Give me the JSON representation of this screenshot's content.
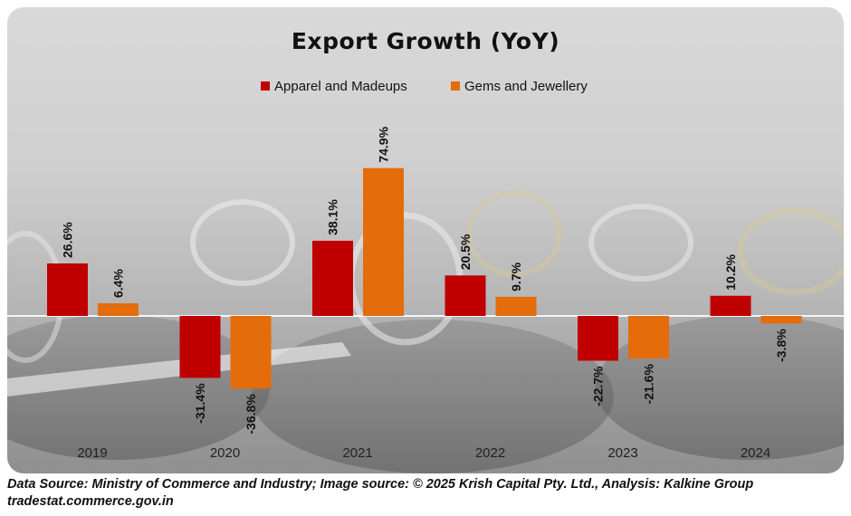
{
  "chart_data": {
    "type": "bar",
    "title": "Export Growth (YoY)",
    "categories": [
      "2019",
      "2020",
      "2021",
      "2022",
      "2023",
      "2024"
    ],
    "series": [
      {
        "name": "Apparel and Madeups",
        "color": "#c00000",
        "values": [
          26.6,
          -31.4,
          38.1,
          20.5,
          -22.7,
          10.2
        ],
        "labels": [
          "26.6%",
          "-31.4%",
          "38.1%",
          "20.5%",
          "-22.7%",
          "10.2%"
        ]
      },
      {
        "name": "Gems and Jewellery",
        "color": "#e46c0a",
        "values": [
          6.4,
          -36.8,
          74.9,
          9.7,
          -21.6,
          -3.8
        ],
        "labels": [
          "6.4%",
          "-36.8%",
          "74.9%",
          "9.7%",
          "-21.6%",
          "-3.8%"
        ]
      }
    ],
    "ylim": [
      -40,
      80
    ],
    "grid": false,
    "legend_position": "top-center"
  },
  "footer": {
    "source_line": "Data Source: Ministry of Commerce and Industry; Image source: © 2025 Krish Capital Pty. Ltd., Analysis: Kalkine Group",
    "url_line": "tradestat.commerce.gov.in"
  }
}
